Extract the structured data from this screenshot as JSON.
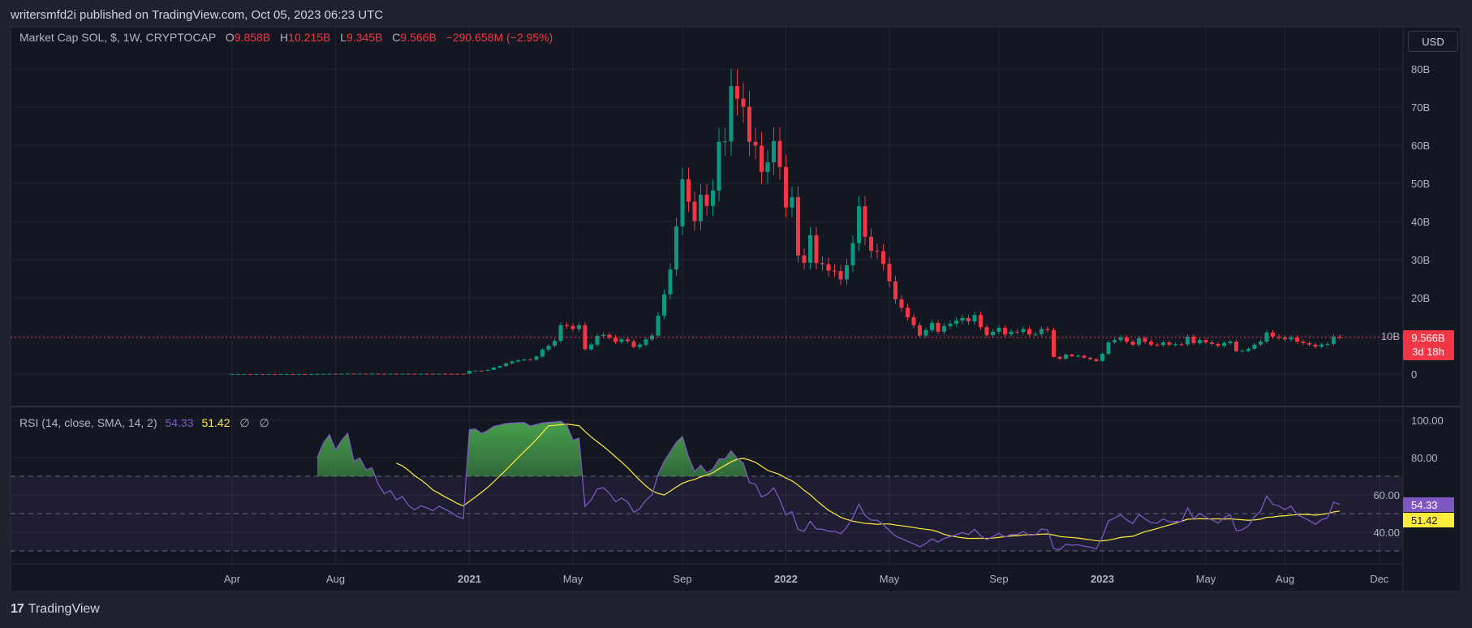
{
  "header": {
    "published": "writersmfd2i published on TradingView.com, Oct 05, 2023 06:23 UTC"
  },
  "legend": {
    "symbol": "Market Cap SOL, $, 1W, CRYPTOCAP",
    "o_label": "O",
    "o": "9.858B",
    "h_label": "H",
    "h": "10.215B",
    "l_label": "L",
    "l": "9.345B",
    "c_label": "C",
    "c": "9.566B",
    "change": "−290.658M (−2.95%)"
  },
  "rsi_legend": {
    "title": "RSI (14, close, SMA, 14, 2)",
    "rsi": "54.33",
    "sma": "51.42",
    "na1": "∅",
    "na2": "∅"
  },
  "currency_button": "USD",
  "price_label": {
    "value": "9.566B",
    "countdown": "3d 18h"
  },
  "rsi_labels": {
    "rsi": "54.33",
    "sma": "51.42"
  },
  "footer": {
    "logo": "17",
    "brand": "TradingView"
  },
  "colors": {
    "up": "#089981",
    "down": "#f23645",
    "rsi": "#7e57c2",
    "sma": "#ffeb3b",
    "background": "#131722",
    "grid": "#232632"
  },
  "chart_data": [
    {
      "type": "candlestick",
      "title": "Market Cap SOL, $, 1W, CRYPTOCAP",
      "unit": "B USD",
      "interval": "1W",
      "start": "Apr 2020",
      "y_ticks": [
        "0",
        "10B",
        "20B",
        "30B",
        "40B",
        "50B",
        "60B",
        "70B",
        "80B"
      ],
      "y_tick_values": [
        0,
        10,
        20,
        30,
        40,
        50,
        60,
        70,
        80
      ],
      "ylim": [
        0,
        80
      ],
      "x_ticks": [
        "Apr",
        "Aug",
        "2021",
        "May",
        "Sep",
        "2022",
        "May",
        "Sep",
        "2023",
        "May",
        "Aug",
        "Dec"
      ],
      "x_tick_weeks": [
        0,
        17,
        39,
        56,
        74,
        91,
        108,
        126,
        143,
        160,
        173,
        188.5
      ],
      "last_price": 9.566,
      "closes": [
        0.03,
        0.03,
        0.031,
        0.03,
        0.032,
        0.031,
        0.033,
        0.032,
        0.034,
        0.035,
        0.034,
        0.036,
        0.035,
        0.037,
        0.045,
        0.06,
        0.08,
        0.075,
        0.1,
        0.14,
        0.12,
        0.13,
        0.12,
        0.125,
        0.11,
        0.1,
        0.105,
        0.095,
        0.1,
        0.09,
        0.085,
        0.09,
        0.088,
        0.085,
        0.09,
        0.087,
        0.084,
        0.08,
        0.078,
        0.85,
        0.9,
        0.88,
        1.1,
        1.7,
        2.1,
        2.8,
        3.3,
        3.6,
        3.8,
        3.75,
        4.6,
        6.4,
        7.4,
        8.7,
        12.8,
        12.6,
        11.8,
        12.8,
        6.5,
        7.7,
        10.0,
        10.3,
        9.6,
        8.4,
        9.1,
        8.6,
        7.1,
        7.7,
        9.1,
        10.1,
        15.3,
        20.9,
        27.4,
        38.7,
        51.1,
        45.2,
        40.1,
        47.0,
        44.1,
        48.1,
        60.9,
        61.0,
        75.5,
        72.2,
        70.1,
        60.9,
        59.9,
        53.0,
        55.5,
        61.1,
        54.3,
        43.7,
        46.4,
        31.1,
        29.2,
        36.4,
        29.1,
        28.8,
        27.1,
        27.0,
        24.8,
        28.5,
        34.3,
        44.0,
        36.0,
        32.3,
        32.2,
        28.9,
        24.3,
        19.6,
        17.4,
        14.9,
        12.8,
        10.1,
        11.5,
        13.4,
        11.1,
        12.6,
        13.2,
        14.0,
        14.7,
        13.8,
        15.5,
        12.3,
        10.2,
        11.1,
        12.1,
        10.4,
        11.1,
        11.05,
        11.8,
        10.4,
        10.5,
        11.8,
        11.5,
        4.5,
        4.0,
        5.1,
        4.7,
        4.8,
        4.3,
        3.9,
        3.4,
        5.3,
        8.3,
        8.9,
        9.6,
        8.5,
        7.7,
        9.4,
        8.5,
        7.7,
        7.6,
        8.3,
        7.7,
        7.8,
        7.75,
        9.8,
        8.1,
        8.9,
        8.3,
        7.9,
        7.4,
        8.1,
        8.5,
        6.0,
        6.1,
        6.6,
        7.7,
        8.5,
        10.9,
        9.8,
        9.6,
        9.1,
        9.6,
        8.5,
        8.1,
        7.7,
        7.2,
        7.7,
        7.9,
        9.8,
        9.566
      ]
    },
    {
      "type": "line",
      "title": "RSI (14, close, SMA, 14, 2)",
      "series": [
        {
          "name": "RSI",
          "length": 14,
          "source": "close",
          "last": 54.33
        },
        {
          "name": "SMA",
          "length": 14,
          "last": 51.42
        }
      ],
      "y_ticks": [
        "40.00",
        "60.00",
        "80.00",
        "100.00"
      ],
      "y_tick_values": [
        40,
        60,
        80,
        100
      ],
      "bands": {
        "upper": 70,
        "middle": 50,
        "lower": 30
      },
      "ylim": [
        20,
        100
      ]
    }
  ]
}
